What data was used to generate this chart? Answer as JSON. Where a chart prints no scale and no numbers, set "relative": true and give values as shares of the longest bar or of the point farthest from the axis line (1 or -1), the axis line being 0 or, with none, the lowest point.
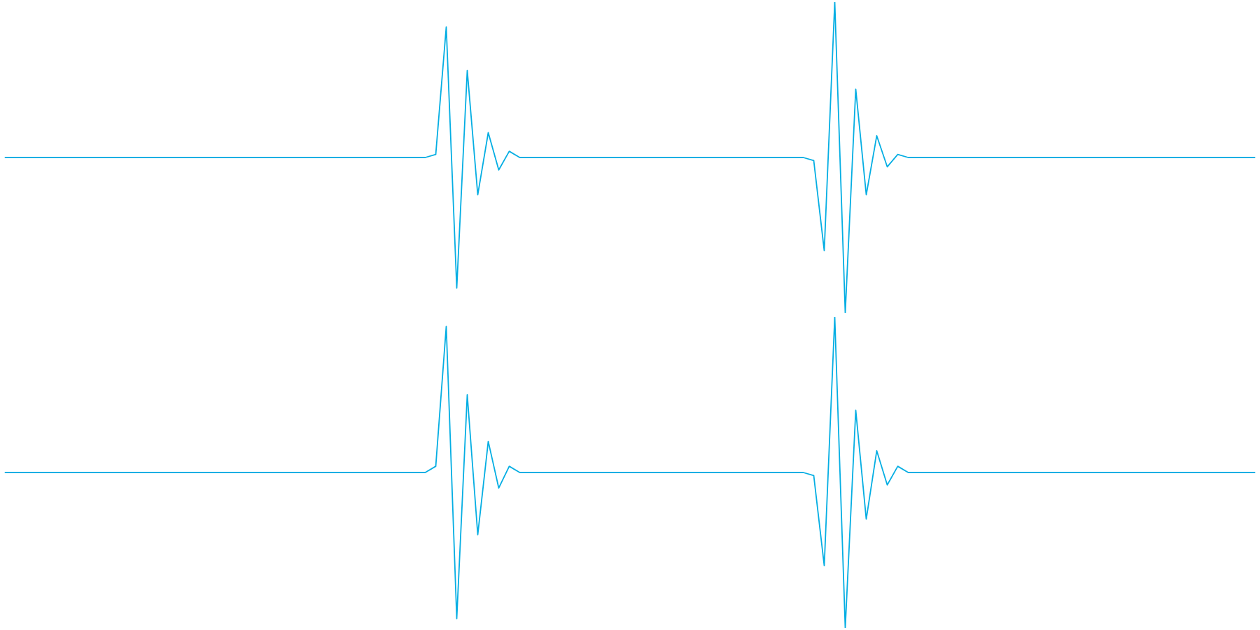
{
  "chart_data": [
    {
      "type": "line",
      "relative": true,
      "legend": false,
      "categories": [
        null,
        null,
        null,
        null,
        null,
        null,
        null,
        null,
        null,
        null,
        null,
        null,
        null,
        null,
        null,
        null,
        null,
        null,
        null,
        null,
        null,
        null,
        null,
        null,
        null,
        null,
        null,
        null,
        null,
        null,
        null,
        null,
        null,
        null,
        null,
        null,
        null,
        null,
        null,
        null,
        null,
        null,
        null,
        null,
        null,
        null,
        null,
        null,
        null,
        null,
        null,
        null,
        null,
        null,
        null,
        null,
        null,
        null,
        null,
        null,
        null,
        null,
        null,
        null,
        null,
        null,
        null,
        null,
        null,
        null,
        null,
        null,
        null,
        null,
        null,
        null,
        null,
        null,
        null,
        null,
        null,
        null,
        null,
        null,
        null,
        null,
        null,
        null,
        null,
        null,
        null,
        null,
        null,
        null,
        null,
        null,
        null,
        null,
        null,
        null,
        null,
        null,
        null,
        null,
        null,
        null,
        null,
        null,
        null,
        null,
        null,
        null,
        null,
        null,
        null,
        null,
        null,
        null,
        null,
        null
      ],
      "series": [
        {
          "color": "#05aee3",
          "values": [
            0.5,
            0.5,
            0.5,
            0.5,
            0.5,
            0.5,
            0.5,
            0.5,
            0.5,
            0.5,
            0.5,
            0.5,
            0.5,
            0.5,
            0.5,
            0.5,
            0.5,
            0.5,
            0.5,
            0.5,
            0.5,
            0.5,
            0.5,
            0.5,
            0.5,
            0.5,
            0.5,
            0.5,
            0.5,
            0.5,
            0.5,
            0.5,
            0.5,
            0.5,
            0.5,
            0.5,
            0.5,
            0.5,
            0.5,
            0.5,
            0.5,
            0.51,
            0.92,
            0.08,
            0.78,
            0.38,
            0.58,
            0.46,
            0.52,
            0.5,
            0.5,
            0.5,
            0.5,
            0.5,
            0.5,
            0.5,
            0.5,
            0.5,
            0.5,
            0.5,
            0.5,
            0.5,
            0.5,
            0.5,
            0.5,
            0.5,
            0.5,
            0.5,
            0.5,
            0.5,
            0.5,
            0.5,
            0.5,
            0.5,
            0.5,
            0.5,
            0.5,
            0.49,
            0.2,
            1.0,
            0.0,
            0.72,
            0.38,
            0.57,
            0.47,
            0.51,
            0.5,
            0.5,
            0.5,
            0.5,
            0.5,
            0.5,
            0.5,
            0.5,
            0.5,
            0.5,
            0.5,
            0.5,
            0.5,
            0.5,
            0.5,
            0.5,
            0.5,
            0.5,
            0.5,
            0.5,
            0.5,
            0.5,
            0.5,
            0.5,
            0.5,
            0.5,
            0.5,
            0.5,
            0.5,
            0.5,
            0.5,
            0.5,
            0.5,
            0.5
          ]
        }
      ]
    },
    {
      "type": "line",
      "relative": true,
      "legend": false,
      "categories": [
        null,
        null,
        null,
        null,
        null,
        null,
        null,
        null,
        null,
        null,
        null,
        null,
        null,
        null,
        null,
        null,
        null,
        null,
        null,
        null,
        null,
        null,
        null,
        null,
        null,
        null,
        null,
        null,
        null,
        null,
        null,
        null,
        null,
        null,
        null,
        null,
        null,
        null,
        null,
        null,
        null,
        null,
        null,
        null,
        null,
        null,
        null,
        null,
        null,
        null,
        null,
        null,
        null,
        null,
        null,
        null,
        null,
        null,
        null,
        null,
        null,
        null,
        null,
        null,
        null,
        null,
        null,
        null,
        null,
        null,
        null,
        null,
        null,
        null,
        null,
        null,
        null,
        null,
        null,
        null,
        null,
        null,
        null,
        null,
        null,
        null,
        null,
        null,
        null,
        null,
        null,
        null,
        null,
        null,
        null,
        null,
        null,
        null,
        null,
        null,
        null,
        null,
        null,
        null,
        null,
        null,
        null,
        null,
        null,
        null,
        null,
        null,
        null,
        null,
        null,
        null,
        null,
        null,
        null,
        null
      ],
      "series": [
        {
          "color": "#05aee3",
          "values": [
            0.5,
            0.5,
            0.5,
            0.5,
            0.5,
            0.5,
            0.5,
            0.5,
            0.5,
            0.5,
            0.5,
            0.5,
            0.5,
            0.5,
            0.5,
            0.5,
            0.5,
            0.5,
            0.5,
            0.5,
            0.5,
            0.5,
            0.5,
            0.5,
            0.5,
            0.5,
            0.5,
            0.5,
            0.5,
            0.5,
            0.5,
            0.5,
            0.5,
            0.5,
            0.5,
            0.5,
            0.5,
            0.5,
            0.5,
            0.5,
            0.5,
            0.52,
            0.97,
            0.03,
            0.75,
            0.3,
            0.6,
            0.45,
            0.52,
            0.5,
            0.5,
            0.5,
            0.5,
            0.5,
            0.5,
            0.5,
            0.5,
            0.5,
            0.5,
            0.5,
            0.5,
            0.5,
            0.5,
            0.5,
            0.5,
            0.5,
            0.5,
            0.5,
            0.5,
            0.5,
            0.5,
            0.5,
            0.5,
            0.5,
            0.5,
            0.5,
            0.5,
            0.49,
            0.2,
            1.0,
            0.0,
            0.7,
            0.35,
            0.57,
            0.46,
            0.52,
            0.5,
            0.5,
            0.5,
            0.5,
            0.5,
            0.5,
            0.5,
            0.5,
            0.5,
            0.5,
            0.5,
            0.5,
            0.5,
            0.5,
            0.5,
            0.5,
            0.5,
            0.5,
            0.5,
            0.5,
            0.5,
            0.5,
            0.5,
            0.5,
            0.5,
            0.5,
            0.5,
            0.5,
            0.5,
            0.5,
            0.5,
            0.5,
            0.5,
            0.5
          ]
        }
      ]
    }
  ]
}
